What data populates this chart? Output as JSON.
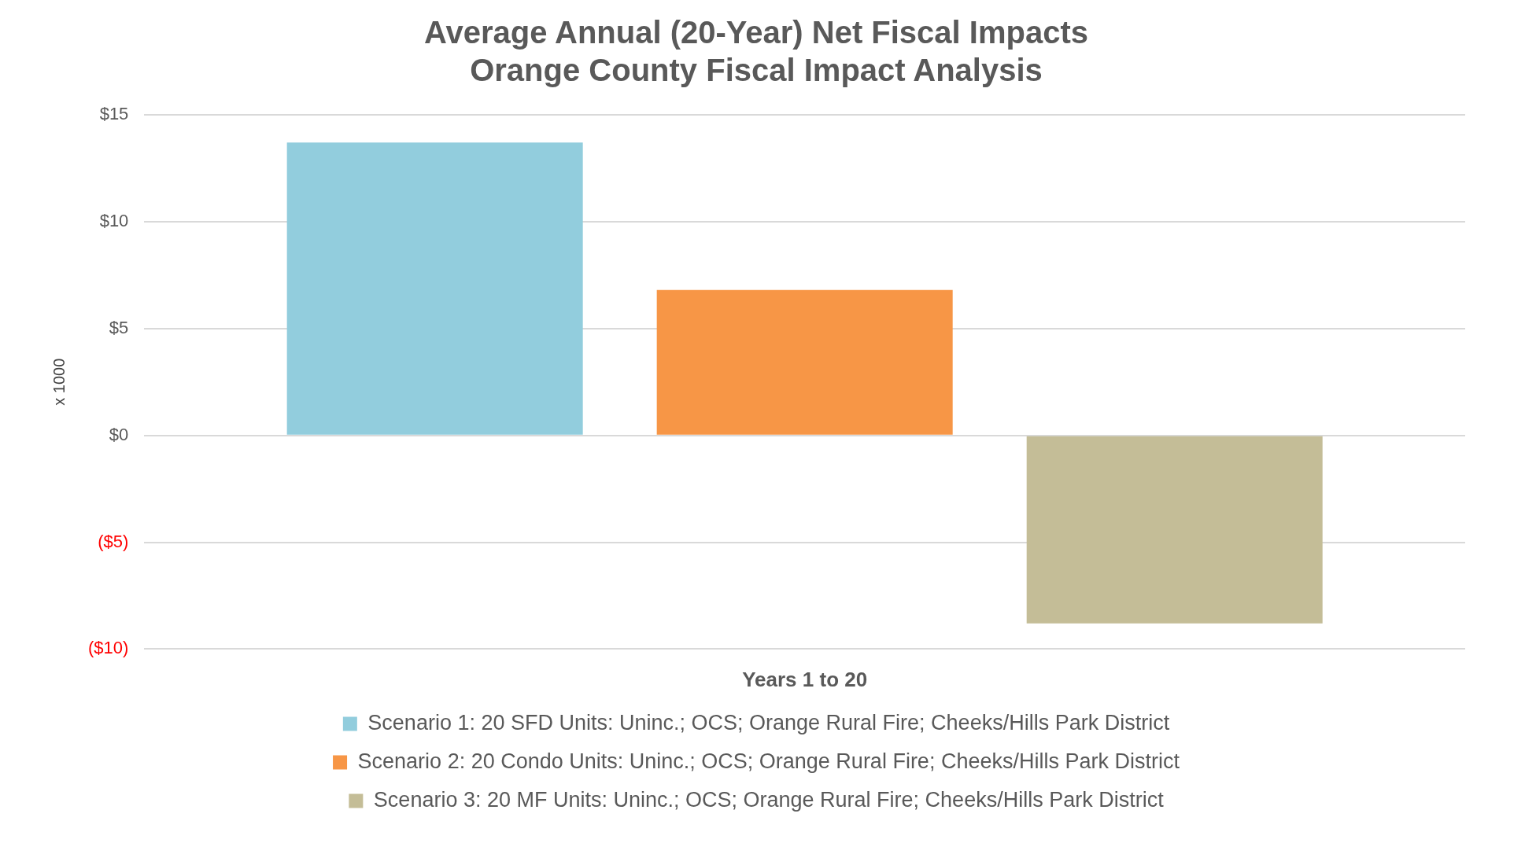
{
  "chart_data": {
    "type": "bar",
    "title": "Average Annual (20-Year) Net Fiscal Impacts\nOrange County Fiscal Impact Analysis",
    "ylabel": "x 1000",
    "xlabel": "Years 1 to 20",
    "categories": [
      null
    ],
    "series": [
      {
        "name": "Scenario 1: 20 SFD Units: Uninc.; OCS; Orange Rural Fire; Cheeks/Hills Park District",
        "color": "#92cddd",
        "values": [
          13.7
        ]
      },
      {
        "name": "Scenario 2: 20 Condo Units: Uninc.; OCS; Orange Rural Fire; Cheeks/Hills Park District",
        "color": "#f79646",
        "values": [
          6.8
        ]
      },
      {
        "name": "Scenario 3: 20 MF Units: Uninc.; OCS; Orange Rural Fire; Cheeks/Hills Park District",
        "color": "#c4bd97",
        "values": [
          -8.8
        ]
      }
    ],
    "ylim": [
      -10,
      15
    ],
    "yticks": [
      {
        "value": -10,
        "label": "($10)"
      },
      {
        "value": -5,
        "label": "($5)"
      },
      {
        "value": 0,
        "label": "$0"
      },
      {
        "value": 5,
        "label": "$5"
      },
      {
        "value": 10,
        "label": "$10"
      },
      {
        "value": 15,
        "label": "$15"
      }
    ],
    "grid": "y",
    "legend": "bottom"
  }
}
